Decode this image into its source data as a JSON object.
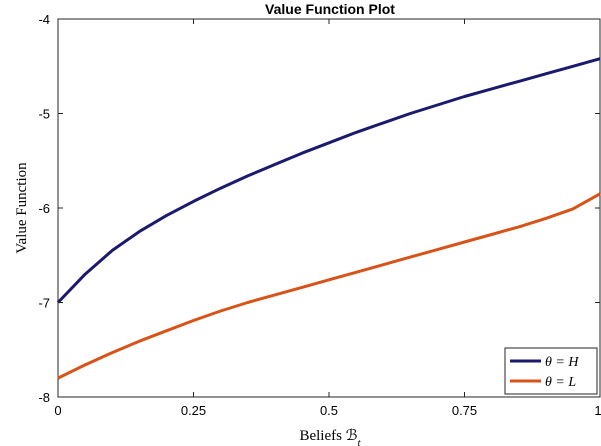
{
  "chart_data": {
    "type": "line",
    "title": "Value Function Plot",
    "xlabel": "Beliefs ℬ",
    "xlabel_sub": "t",
    "ylabel": "Value Function",
    "xlim": [
      0,
      1
    ],
    "ylim": [
      -8,
      -4
    ],
    "xticks": [
      0,
      0.25,
      0.5,
      0.75,
      1
    ],
    "xtick_labels": [
      "0",
      "0.25",
      "0.5",
      "0.75",
      "1"
    ],
    "yticks": [
      -8,
      -7,
      -6,
      -5,
      -4
    ],
    "ytick_labels": [
      "-8",
      "-7",
      "-6",
      "-5",
      "-4"
    ],
    "grid": false,
    "legend_position": "bottom-right",
    "series": [
      {
        "name": "θ = H",
        "color": "#1a1a6e",
        "x": [
          0,
          0.05,
          0.1,
          0.15,
          0.2,
          0.25,
          0.3,
          0.35,
          0.4,
          0.45,
          0.5,
          0.55,
          0.6,
          0.65,
          0.7,
          0.75,
          0.8,
          0.85,
          0.9,
          0.95,
          1.0
        ],
        "y": [
          -7.0,
          -6.7,
          -6.45,
          -6.25,
          -6.08,
          -5.93,
          -5.79,
          -5.66,
          -5.54,
          -5.42,
          -5.31,
          -5.2,
          -5.1,
          -5.0,
          -4.91,
          -4.82,
          -4.74,
          -4.66,
          -4.58,
          -4.5,
          -4.42
        ]
      },
      {
        "name": "θ = L",
        "color": "#d95319",
        "x": [
          0,
          0.05,
          0.1,
          0.15,
          0.2,
          0.25,
          0.3,
          0.35,
          0.4,
          0.45,
          0.5,
          0.55,
          0.6,
          0.65,
          0.7,
          0.75,
          0.8,
          0.85,
          0.9,
          0.95,
          1.0
        ],
        "y": [
          -7.8,
          -7.66,
          -7.53,
          -7.41,
          -7.3,
          -7.19,
          -7.09,
          -7.0,
          -6.92,
          -6.84,
          -6.76,
          -6.68,
          -6.6,
          -6.52,
          -6.44,
          -6.36,
          -6.28,
          -6.2,
          -6.11,
          -6.01,
          -5.85
        ]
      }
    ]
  }
}
